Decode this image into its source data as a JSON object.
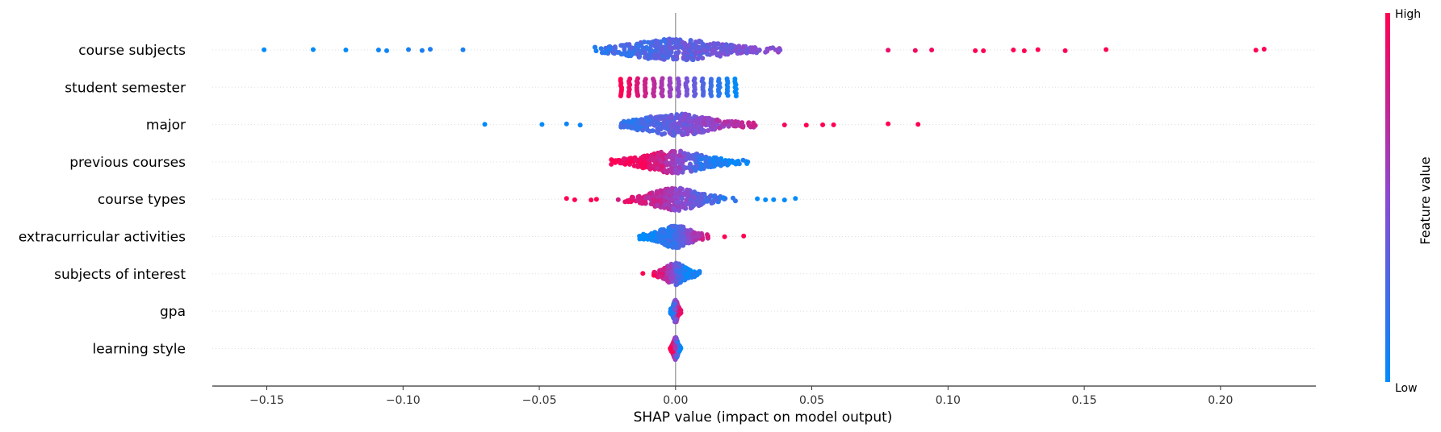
{
  "chart_data": {
    "type": "scatter",
    "subtype": "shap-beeswarm",
    "title": "",
    "xlabel": "SHAP value (impact on model output)",
    "ylabel": "",
    "xlim": [
      -0.17,
      0.235
    ],
    "xticks": [
      -0.15,
      -0.1,
      -0.05,
      0.0,
      0.05,
      0.1,
      0.15,
      0.2
    ],
    "xtick_labels": [
      "−0.15",
      "−0.10",
      "−0.05",
      "0.00",
      "0.05",
      "0.10",
      "0.15",
      "0.20"
    ],
    "grid": false,
    "colors": {
      "low": "#008bfb",
      "mid": "#8b4bd1",
      "high": "#ff0052",
      "axis": "#333333",
      "zero_line": "#999999",
      "row_line": "#dddddd"
    },
    "colorbar": {
      "label": "Feature value",
      "high_label": "High",
      "low_label": "Low",
      "placement": "right"
    },
    "features": [
      {
        "name": "course subjects",
        "min": -0.151,
        "max": 0.216,
        "core": [
          -0.03,
          0.04
        ],
        "outliers": [
          {
            "x": -0.151,
            "f": 0.0
          },
          {
            "x": -0.133,
            "f": 0.0
          },
          {
            "x": -0.121,
            "f": 0.0
          },
          {
            "x": -0.109,
            "f": 0.05
          },
          {
            "x": -0.106,
            "f": 0.05
          },
          {
            "x": -0.098,
            "f": 0.1
          },
          {
            "x": -0.093,
            "f": 0.1
          },
          {
            "x": -0.09,
            "f": 0.1
          },
          {
            "x": -0.078,
            "f": 0.1
          },
          {
            "x": 0.078,
            "f": 0.9
          },
          {
            "x": 0.088,
            "f": 0.95
          },
          {
            "x": 0.094,
            "f": 0.95
          },
          {
            "x": 0.11,
            "f": 1.0
          },
          {
            "x": 0.113,
            "f": 1.0
          },
          {
            "x": 0.124,
            "f": 1.0
          },
          {
            "x": 0.128,
            "f": 1.0
          },
          {
            "x": 0.133,
            "f": 1.0
          },
          {
            "x": 0.143,
            "f": 1.0
          },
          {
            "x": 0.158,
            "f": 1.0
          },
          {
            "x": 0.213,
            "f": 1.0
          },
          {
            "x": 0.216,
            "f": 1.0
          }
        ],
        "color_direction": "positive"
      },
      {
        "name": "student semester",
        "min": -0.02,
        "max": 0.023,
        "discrete": true,
        "levels": [
          -0.02,
          -0.017,
          -0.014,
          -0.011,
          -0.008,
          -0.005,
          -0.002,
          0.001,
          0.004,
          0.007,
          0.01,
          0.013,
          0.016,
          0.019,
          0.022
        ],
        "color_direction": "negative"
      },
      {
        "name": "major",
        "min": -0.07,
        "max": 0.089,
        "core": [
          -0.02,
          0.03
        ],
        "outliers": [
          {
            "x": -0.07,
            "f": 0.0
          },
          {
            "x": -0.049,
            "f": 0.0
          },
          {
            "x": -0.04,
            "f": 0.05
          },
          {
            "x": -0.035,
            "f": 0.05
          },
          {
            "x": 0.04,
            "f": 0.95
          },
          {
            "x": 0.048,
            "f": 1.0
          },
          {
            "x": 0.054,
            "f": 1.0
          },
          {
            "x": 0.058,
            "f": 1.0
          },
          {
            "x": 0.078,
            "f": 1.0
          },
          {
            "x": 0.089,
            "f": 1.0
          }
        ],
        "color_direction": "positive"
      },
      {
        "name": "previous courses",
        "min": -0.024,
        "max": 0.028,
        "core": [
          -0.024,
          0.028
        ],
        "outliers": [],
        "color_direction": "negative"
      },
      {
        "name": "course types",
        "min": -0.04,
        "max": 0.044,
        "core": [
          -0.022,
          0.022
        ],
        "outliers": [
          {
            "x": -0.04,
            "f": 1.0
          },
          {
            "x": -0.037,
            "f": 1.0
          },
          {
            "x": -0.031,
            "f": 1.0
          },
          {
            "x": -0.029,
            "f": 1.0
          },
          {
            "x": 0.03,
            "f": 0.0
          },
          {
            "x": 0.033,
            "f": 0.0
          },
          {
            "x": 0.036,
            "f": 0.0
          },
          {
            "x": 0.04,
            "f": 0.0
          },
          {
            "x": 0.044,
            "f": 0.0
          }
        ],
        "color_direction": "negative"
      },
      {
        "name": "extracurricular activities",
        "min": -0.015,
        "max": 0.025,
        "core": [
          -0.014,
          0.012
        ],
        "outliers": [
          {
            "x": 0.018,
            "f": 1.0
          },
          {
            "x": 0.025,
            "f": 1.0
          }
        ],
        "color_direction": "positive"
      },
      {
        "name": "subjects of interest",
        "min": -0.012,
        "max": 0.009,
        "core": [
          -0.008,
          0.009
        ],
        "outliers": [
          {
            "x": -0.012,
            "f": 1.0
          }
        ],
        "color_direction": "negative"
      },
      {
        "name": "gpa",
        "min": -0.002,
        "max": 0.002,
        "core": [
          -0.002,
          0.002
        ],
        "outliers": [],
        "color_direction": "positive"
      },
      {
        "name": "learning style",
        "min": -0.002,
        "max": 0.002,
        "core": [
          -0.002,
          0.002
        ],
        "outliers": [],
        "color_direction": "negative"
      }
    ]
  }
}
